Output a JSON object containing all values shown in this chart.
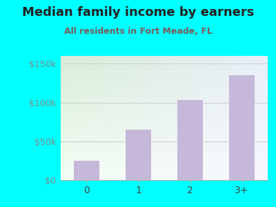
{
  "title": "Median family income by earners",
  "subtitle": "All residents in Fort Meade, FL",
  "categories": [
    "0",
    "1",
    "2",
    "3+"
  ],
  "values": [
    25000,
    65000,
    103000,
    135000
  ],
  "bar_color": "#c5b8d8",
  "title_color": "#222222",
  "subtitle_color": "#7a5c5c",
  "background_outer": "#00ffff",
  "ylim": [
    0,
    160000
  ],
  "yticks": [
    0,
    50000,
    100000,
    150000
  ],
  "ytick_labels": [
    "$0",
    "$50k",
    "$100k",
    "$150k"
  ],
  "title_fontsize": 13,
  "subtitle_fontsize": 9,
  "gradient_top": "#d8edd8",
  "gradient_bottom": "#f5fff5",
  "gradient_right": "#e8eef8"
}
